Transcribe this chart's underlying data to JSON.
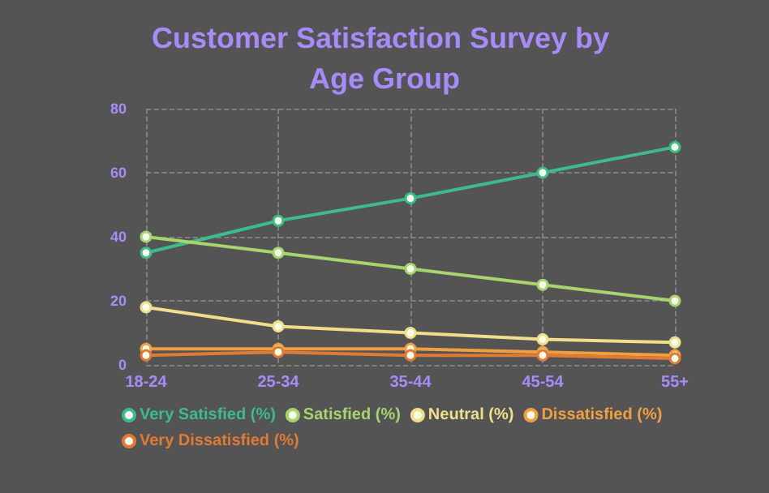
{
  "chart_data": {
    "type": "line",
    "title": "Customer Satisfaction Survey by Age Group",
    "categories": [
      "18-24",
      "25-34",
      "35-44",
      "45-54",
      "55+"
    ],
    "series": [
      {
        "name": "Very Satisfied (%)",
        "color": "#3dbb8a",
        "values": [
          35,
          45,
          52,
          60,
          68
        ]
      },
      {
        "name": "Satisfied (%)",
        "color": "#a8d46f",
        "values": [
          40,
          35,
          30,
          25,
          20
        ]
      },
      {
        "name": "Neutral (%)",
        "color": "#f0de8c",
        "values": [
          18,
          12,
          10,
          8,
          7
        ]
      },
      {
        "name": "Dissatisfied (%)",
        "color": "#f0a040",
        "values": [
          5,
          5,
          5,
          4,
          3
        ]
      },
      {
        "name": "Very Dissatisfied (%)",
        "color": "#e07a35",
        "values": [
          3,
          4,
          3,
          3,
          2
        ]
      }
    ],
    "ylim": [
      0,
      80
    ],
    "yticks": [
      0,
      20,
      40,
      60,
      80
    ],
    "grid": true,
    "legend": "bottom",
    "marker": "circle",
    "line_style": "solid"
  }
}
